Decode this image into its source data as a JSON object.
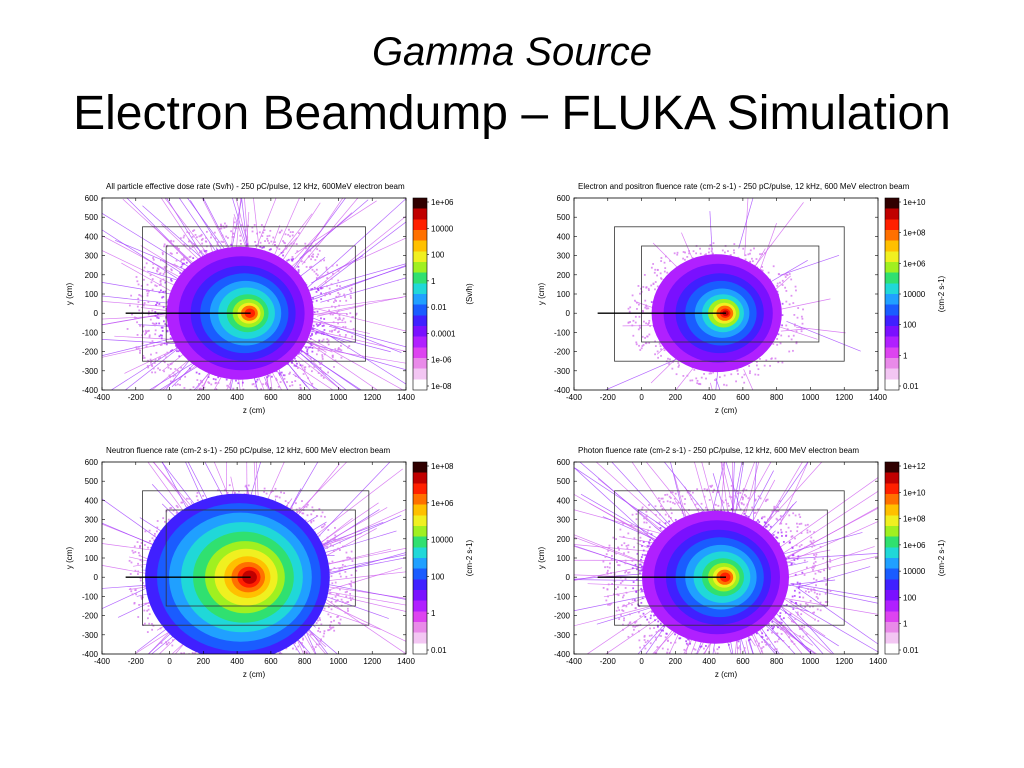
{
  "slide": {
    "title_line1": "Gamma Source",
    "title_line2": "Electron Beamdump – FLUKA Simulation"
  },
  "chart_data": [
    {
      "type": "heatmap",
      "title": "All particle effective dose rate (Sv/h) - 250 pC/pulse, 12 kHz, 600MeV electron beam",
      "xlabel": "z (cm)",
      "ylabel": "y (cm)",
      "colorbar_label": "(Sv/h)",
      "xlim": [
        -400,
        1400
      ],
      "ylim": [
        -400,
        600
      ],
      "xticks": [
        "-400",
        "-200",
        "0",
        "200",
        "400",
        "600",
        "800",
        "1000",
        "1200",
        "1400"
      ],
      "yticks": [
        "-400",
        "-300",
        "-200",
        "-100",
        "0",
        "100",
        "200",
        "300",
        "400",
        "500",
        "600"
      ],
      "colorbar_ticks": [
        "1e-08",
        "1e-06",
        "0.0001",
        "0.01",
        "1",
        "100",
        "10000",
        "1e+06"
      ],
      "hotspot": {
        "z": 480,
        "y": 0
      },
      "beam_line": {
        "z_start": -260,
        "z_end": 480,
        "y": 0
      },
      "outer_box": {
        "z": [
          -160,
          1160
        ],
        "y": [
          -250,
          450
        ]
      },
      "inner_box": {
        "z": [
          -20,
          1100
        ],
        "y": [
          -150,
          350
        ]
      }
    },
    {
      "type": "heatmap",
      "title": "Electron and positron fluence rate (cm-2 s-1) - 250 pC/pulse, 12 kHz, 600 MeV electron beam",
      "xlabel": "z (cm)",
      "ylabel": "y (cm)",
      "colorbar_label": "(cm-2 s-1)",
      "xlim": [
        -400,
        1400
      ],
      "ylim": [
        -400,
        600
      ],
      "xticks": [
        "-400",
        "-200",
        "0",
        "200",
        "400",
        "600",
        "800",
        "1000",
        "1200",
        "1400"
      ],
      "yticks": [
        "-400",
        "-300",
        "-200",
        "-100",
        "0",
        "100",
        "200",
        "300",
        "400",
        "500",
        "600"
      ],
      "colorbar_ticks": [
        "0.01",
        "1",
        "100",
        "10000",
        "1e+06",
        "1e+08",
        "1e+10"
      ],
      "hotspot": {
        "z": 500,
        "y": 0
      },
      "beam_line": {
        "z_start": -260,
        "z_end": 500,
        "y": 0
      },
      "outer_box": {
        "z": [
          -160,
          1200
        ],
        "y": [
          -250,
          450
        ]
      },
      "inner_box": {
        "z": [
          0,
          1050
        ],
        "y": [
          -150,
          350
        ]
      }
    },
    {
      "type": "heatmap",
      "title": "Neutron fluence rate (cm-2 s-1) - 250 pC/pulse, 12 kHz, 600 MeV electron beam",
      "xlabel": "z (cm)",
      "ylabel": "y (cm)",
      "colorbar_label": "(cm-2 s-1)",
      "xlim": [
        -400,
        1400
      ],
      "ylim": [
        -400,
        600
      ],
      "xticks": [
        "-400",
        "-200",
        "0",
        "200",
        "400",
        "600",
        "800",
        "1000",
        "1200",
        "1400"
      ],
      "yticks": [
        "-400",
        "-300",
        "-200",
        "-100",
        "0",
        "100",
        "200",
        "300",
        "400",
        "500",
        "600"
      ],
      "colorbar_ticks": [
        "0.01",
        "1",
        "100",
        "10000",
        "1e+06",
        "1e+08"
      ],
      "hotspot": {
        "z": 480,
        "y": 0
      },
      "beam_line": {
        "z_start": -260,
        "z_end": 480,
        "y": 0
      },
      "outer_box": {
        "z": [
          -160,
          1180
        ],
        "y": [
          -250,
          450
        ]
      },
      "inner_box": {
        "z": [
          -20,
          1100
        ],
        "y": [
          -150,
          350
        ]
      }
    },
    {
      "type": "heatmap",
      "title": "Photon fluence rate (cm-2 s-1) - 250 pC/pulse, 12 kHz, 600 MeV electron beam",
      "xlabel": "z (cm)",
      "ylabel": "y (cm)",
      "colorbar_label": "(cm-2 s-1)",
      "xlim": [
        -400,
        1400
      ],
      "ylim": [
        -400,
        600
      ],
      "xticks": [
        "-400",
        "-200",
        "0",
        "200",
        "400",
        "600",
        "800",
        "1000",
        "1200",
        "1400"
      ],
      "yticks": [
        "-400",
        "-300",
        "-200",
        "-100",
        "0",
        "100",
        "200",
        "300",
        "400",
        "500",
        "600"
      ],
      "colorbar_ticks": [
        "0.01",
        "1",
        "100",
        "10000",
        "1e+06",
        "1e+08",
        "1e+10",
        "1e+12"
      ],
      "hotspot": {
        "z": 500,
        "y": 0
      },
      "beam_line": {
        "z_start": -260,
        "z_end": 500,
        "y": 0
      },
      "outer_box": {
        "z": [
          -160,
          1200
        ],
        "y": [
          -250,
          450
        ]
      },
      "inner_box": {
        "z": [
          -20,
          1100
        ],
        "y": [
          -150,
          350
        ]
      }
    }
  ],
  "colorscale": [
    "#ffffff",
    "#f3c6f3",
    "#e98ae9",
    "#dd44f0",
    "#b020ff",
    "#7a10ff",
    "#4020ff",
    "#1a5cff",
    "#20a0ff",
    "#20d8d8",
    "#30e070",
    "#a0f020",
    "#f0f020",
    "#ffc000",
    "#ff7000",
    "#ff2000",
    "#c00000",
    "#300000"
  ]
}
